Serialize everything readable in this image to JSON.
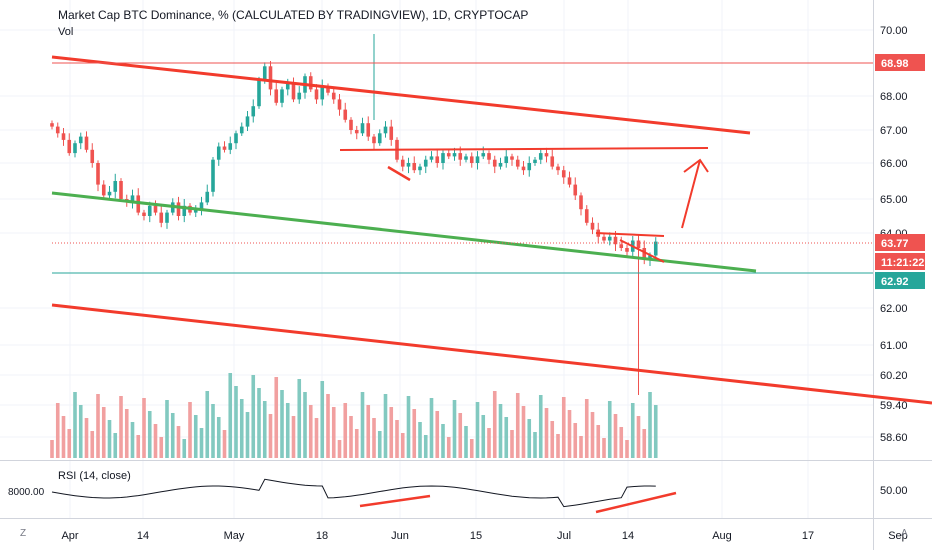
{
  "header": {
    "title": "Market Cap BTC Dominance, % (CALCULATED BY TRADINGVIEW), 1D, CRYPTOCAP",
    "vol_label": "Vol",
    "rsi_label": "RSI (14, close)"
  },
  "corner": {
    "left": "Z",
    "right": "A"
  },
  "colors": {
    "up": "#26a69a",
    "down": "#ef5350",
    "vol_up": "#82c9c0",
    "vol_down": "#f1a0a0",
    "trend_red": "#f23b2c",
    "trend_green": "#4caf50",
    "support_teal": "#26a69a",
    "resistance_red": "#ef5350",
    "text": "#131722",
    "axis_text": "#787b86"
  },
  "chart_data": {
    "type": "candlestick",
    "y_axis_ticks": [
      "70.00",
      "68.00",
      "67.00",
      "66.00",
      "65.00",
      "64.00",
      "62.00",
      "61.00",
      "60.20",
      "59.40",
      "58.60"
    ],
    "price_labels": [
      {
        "text": "68.98",
        "color": "#ef5350"
      },
      {
        "text": "63.77",
        "color": "#ef5350"
      },
      {
        "text": "11:21:22",
        "color": "#ef5350"
      },
      {
        "text": "62.92",
        "color": "#26a69a"
      }
    ],
    "rsi_axis_labels": {
      "left": "8000.00",
      "right": "50.00"
    },
    "x_axis_labels": [
      "Apr",
      "14",
      "May",
      "18",
      "Jun",
      "15",
      "Jul",
      "14",
      "Aug",
      "17",
      "Sep"
    ],
    "last_price": 63.77,
    "horizontal_levels": [
      68.98,
      62.92
    ]
  }
}
